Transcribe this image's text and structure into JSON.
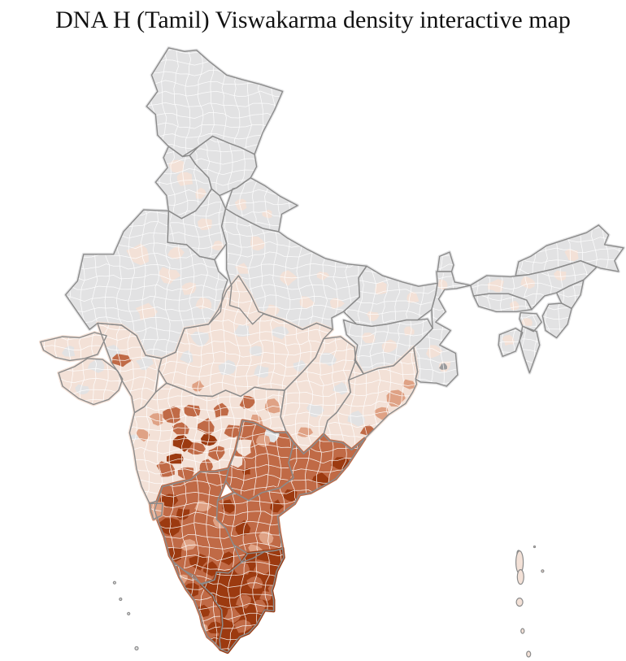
{
  "title": "DNA H (Tamil) Viswakarma density interactive map",
  "map": {
    "background": "#ffffff",
    "border_colors": {
      "state": "#8b8b8b",
      "district": "#ffffff",
      "coast": "#8b8b8b"
    },
    "density_palette": {
      "no_data": "#e2e2e3",
      "very_low": "#f3e1d7",
      "low": "#dfa285",
      "medium": "#c06a46",
      "high": "#9c3a10",
      "urban": "#9b9b9d"
    },
    "regions": [
      {
        "name": "Jammu & Kashmir",
        "key": "jammu_kashmir",
        "density": "no_data",
        "patches": []
      },
      {
        "name": "Himachal Pradesh",
        "key": "himachal",
        "density": "no_data",
        "patches": []
      },
      {
        "name": "Punjab",
        "key": "punjab",
        "density": "no_data",
        "patches": [
          "very_low",
          "very_low",
          "very_low"
        ]
      },
      {
        "name": "Haryana",
        "key": "haryana",
        "density": "no_data",
        "patches": [
          "very_low",
          "very_low"
        ]
      },
      {
        "name": "Uttarakhand",
        "key": "uttarakhand",
        "density": "no_data",
        "patches": [
          "very_low",
          "very_low"
        ]
      },
      {
        "name": "Rajasthan",
        "key": "rajasthan",
        "density": "no_data",
        "patches": [
          "very_low",
          "very_low",
          "very_low",
          "very_low",
          "very_low",
          "very_low"
        ]
      },
      {
        "name": "Gujarat",
        "key": "gujarat",
        "density": "very_low",
        "patches": [
          "no_data",
          "no_data",
          "no_data",
          "no_data",
          "medium",
          "no_data"
        ]
      },
      {
        "name": "Uttar Pradesh",
        "key": "uttar_pradesh",
        "density": "no_data",
        "patches": [
          "very_low",
          "very_low",
          "very_low",
          "very_low",
          "very_low",
          "very_low",
          "very_low"
        ]
      },
      {
        "name": "Bihar",
        "key": "bihar",
        "density": "no_data",
        "patches": [
          "very_low",
          "very_low",
          "very_low"
        ]
      },
      {
        "name": "Jharkhand",
        "key": "jharkhand",
        "density": "no_data",
        "patches": [
          "very_low",
          "very_low",
          "very_low"
        ]
      },
      {
        "name": "West Bengal",
        "key": "west_bengal",
        "density": "no_data",
        "patches": [
          "very_low",
          "very_low",
          "very_low",
          "urban"
        ]
      },
      {
        "name": "Sikkim",
        "key": "sikkim",
        "density": "no_data",
        "patches": []
      },
      {
        "name": "Assam",
        "key": "assam",
        "density": "no_data",
        "patches": [
          "very_low",
          "very_low",
          "very_low",
          "very_low"
        ]
      },
      {
        "name": "Meghalaya",
        "key": "meghalaya",
        "density": "no_data",
        "patches": [
          "very_low"
        ]
      },
      {
        "name": "Arunachal Pradesh",
        "key": "arunachal",
        "density": "no_data",
        "patches": [
          "very_low"
        ]
      },
      {
        "name": "Nagaland",
        "key": "nagaland",
        "density": "no_data",
        "patches": []
      },
      {
        "name": "Manipur",
        "key": "manipur",
        "density": "no_data",
        "patches": []
      },
      {
        "name": "Mizoram",
        "key": "mizoram",
        "density": "no_data",
        "patches": []
      },
      {
        "name": "Tripura",
        "key": "tripura",
        "density": "no_data",
        "patches": [
          "very_low"
        ]
      },
      {
        "name": "Madhya Pradesh",
        "key": "madhya_pradesh",
        "density": "very_low",
        "patches": [
          "no_data",
          "no_data",
          "no_data",
          "no_data",
          "no_data",
          "no_data",
          "no_data",
          "no_data",
          "low"
        ]
      },
      {
        "name": "Chhattisgarh",
        "key": "chhattisgarh",
        "density": "very_low",
        "patches": [
          "no_data",
          "no_data",
          "no_data",
          "low"
        ]
      },
      {
        "name": "Odisha",
        "key": "odisha",
        "density": "very_low",
        "patches": [
          "low",
          "low",
          "medium",
          "low",
          "no_data"
        ]
      },
      {
        "name": "Maharashtra",
        "key": "maharashtra",
        "density": "very_low",
        "patches": [
          "medium",
          "medium",
          "medium",
          "medium",
          "medium",
          "medium",
          "medium",
          "medium",
          "medium",
          "medium",
          "medium",
          "medium",
          "high",
          "high",
          "high",
          "low",
          "low",
          "low",
          "low",
          "no_data"
        ]
      },
      {
        "name": "Telangana",
        "key": "telangana",
        "density": "medium",
        "patches": [
          "very_low",
          "very_low",
          "no_data",
          "high",
          "low"
        ]
      },
      {
        "name": "Andhra Pradesh",
        "key": "andhra_pradesh",
        "density": "medium",
        "patches": [
          "high",
          "high",
          "high",
          "high",
          "high",
          "high",
          "low",
          "low",
          "medium",
          "medium"
        ]
      },
      {
        "name": "Karnataka",
        "key": "karnataka",
        "density": "medium",
        "patches": [
          "high",
          "high",
          "high",
          "high",
          "high",
          "high",
          "high",
          "low",
          "low",
          "low",
          "medium"
        ]
      },
      {
        "name": "Goa",
        "key": "goa",
        "density": "low",
        "patches": []
      },
      {
        "name": "Kerala",
        "key": "kerala",
        "density": "medium",
        "patches": [
          "high",
          "high",
          "high",
          "high",
          "low",
          "low"
        ]
      },
      {
        "name": "Tamil Nadu",
        "key": "tamil_nadu",
        "density": "high",
        "patches": [
          "medium",
          "medium",
          "medium",
          "medium",
          "medium",
          "medium",
          "medium",
          "medium",
          "medium"
        ]
      },
      {
        "name": "Andaman & Nicobar Islands",
        "key": "andaman",
        "density": "very_low",
        "patches": []
      },
      {
        "name": "Lakshadweep",
        "key": "lakshadweep",
        "density": "no_data",
        "patches": []
      }
    ]
  }
}
